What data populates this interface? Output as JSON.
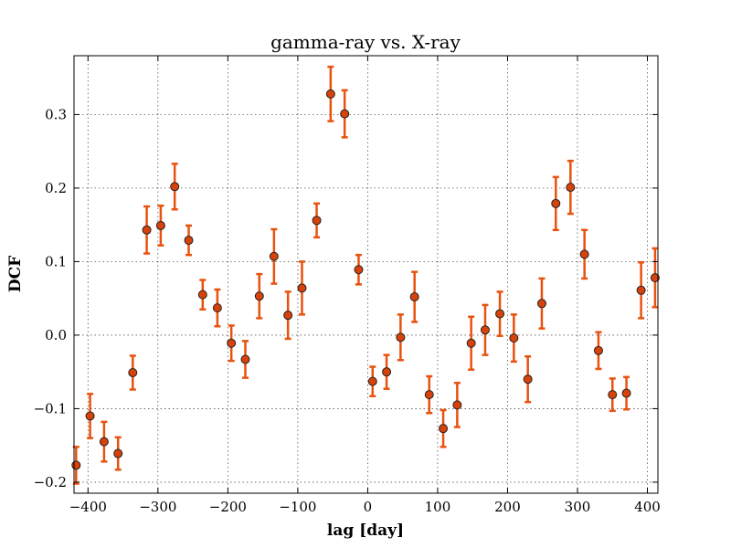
{
  "chart_data": {
    "type": "scatter",
    "title": "gamma-ray vs. X-ray",
    "xlabel": "lag [day]",
    "ylabel": "DCF",
    "xlim": [
      -420,
      415
    ],
    "ylim": [
      -0.215,
      0.38
    ],
    "xticks": [
      -400,
      -300,
      -200,
      -100,
      0,
      100,
      200,
      300,
      400
    ],
    "xtick_labels": [
      "−400",
      "−300",
      "−200",
      "−100",
      "0",
      "100",
      "200",
      "300",
      "400"
    ],
    "yticks": [
      -0.2,
      -0.1,
      0.0,
      0.1,
      0.2,
      0.3
    ],
    "ytick_labels": [
      "−0.2",
      "−0.1",
      "0.0",
      "0.1",
      "0.2",
      "0.3"
    ],
    "grid": true,
    "colors": {
      "errorbar": "#e8520f",
      "marker": "#d6420a"
    },
    "series": [
      {
        "x": [
          -417,
          -397,
          -377,
          -357,
          -336,
          -316,
          -296,
          -276,
          -256,
          -236,
          -215,
          -195,
          -175,
          -155,
          -134,
          -114,
          -94,
          -73,
          -53,
          -33,
          -13,
          7,
          27,
          47,
          67,
          88,
          108,
          128,
          148,
          168,
          189,
          209,
          229,
          249,
          269,
          290,
          310,
          330,
          350,
          370,
          391,
          411
        ],
        "y": [
          -0.177,
          -0.11,
          -0.145,
          -0.161,
          -0.051,
          0.143,
          0.149,
          0.202,
          0.129,
          0.055,
          0.037,
          -0.011,
          -0.033,
          0.053,
          0.107,
          0.027,
          0.064,
          0.156,
          0.328,
          0.301,
          0.089,
          -0.063,
          -0.05,
          -0.003,
          0.052,
          -0.081,
          -0.127,
          -0.095,
          -0.011,
          0.007,
          0.029,
          -0.004,
          -0.06,
          0.043,
          0.179,
          0.201,
          0.11,
          -0.021,
          -0.081,
          -0.079,
          0.061,
          0.078
        ],
        "err": [
          0.025,
          0.03,
          0.027,
          0.022,
          0.023,
          0.032,
          0.027,
          0.031,
          0.02,
          0.02,
          0.025,
          0.024,
          0.025,
          0.03,
          0.037,
          0.032,
          0.036,
          0.023,
          0.037,
          0.032,
          0.02,
          0.02,
          0.023,
          0.031,
          0.034,
          0.025,
          0.025,
          0.03,
          0.036,
          0.034,
          0.03,
          0.032,
          0.031,
          0.034,
          0.036,
          0.036,
          0.033,
          0.025,
          0.022,
          0.022,
          0.038,
          0.04
        ]
      }
    ]
  }
}
